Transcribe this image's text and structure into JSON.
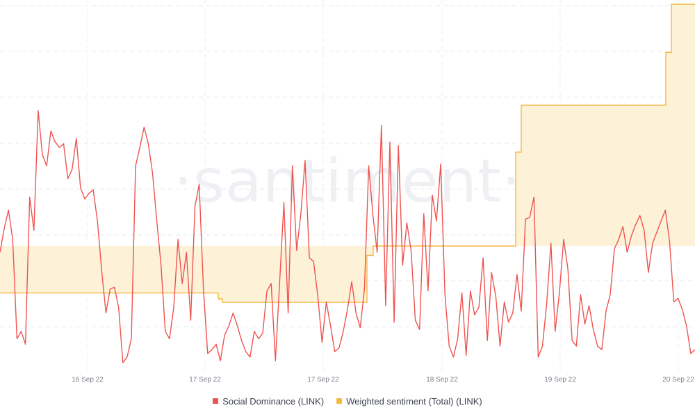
{
  "watermark": "·santiment·",
  "chart_data": {
    "type": "line",
    "title": "",
    "xlabel": "",
    "ylabel": "",
    "grid": true,
    "legend_position": "bottom-center",
    "x_ticks": [
      "16 Sep 22",
      "17 Sep 22",
      "17 Sep 22",
      "18 Sep 22",
      "19 Sep 22",
      "20 Sep 22"
    ],
    "series": [
      {
        "name": "Social Dominance (LINK)",
        "color": "#ef5350",
        "style": "line",
        "values": [
          0.65,
          0.78,
          0.88,
          0.72,
          0.18,
          0.22,
          0.15,
          0.95,
          0.77,
          1.42,
          1.18,
          1.12,
          1.31,
          1.25,
          1.22,
          1.24,
          1.05,
          1.1,
          1.27,
          1.0,
          0.94,
          0.97,
          0.99,
          0.82,
          0.55,
          0.32,
          0.45,
          0.46,
          0.35,
          0.05,
          0.08,
          0.18,
          1.12,
          1.22,
          1.33,
          1.24,
          1.08,
          0.82,
          0.58,
          0.22,
          0.18,
          0.35,
          0.72,
          0.48,
          0.65,
          0.28,
          0.9,
          1.02,
          0.45,
          0.1,
          0.12,
          0.15,
          0.06,
          0.2,
          0.25,
          0.32,
          0.25,
          0.17,
          0.11,
          0.08,
          0.22,
          0.18,
          0.21,
          0.44,
          0.48,
          0.06,
          0.49,
          0.92,
          0.32,
          1.12,
          0.66,
          0.86,
          1.15,
          0.62,
          0.6,
          0.41,
          0.16,
          0.38,
          0.25,
          0.11,
          0.13,
          0.22,
          0.34,
          0.49,
          0.32,
          0.24,
          0.45,
          1.12,
          0.85,
          0.65,
          1.34,
          0.36,
          1.25,
          0.27,
          1.23,
          0.58,
          0.81,
          0.66,
          0.28,
          0.23,
          0.86,
          0.44,
          0.96,
          0.82,
          1.13,
          0.42,
          0.14,
          0.08,
          0.18,
          0.43,
          0.09,
          0.44,
          0.31,
          0.35,
          0.62,
          0.17,
          0.54,
          0.41,
          0.14,
          0.38,
          0.27,
          0.32,
          0.53,
          0.33,
          0.83,
          0.84,
          0.95,
          0.08,
          0.14,
          0.37,
          0.7,
          0.22,
          0.43,
          0.72,
          0.56,
          0.17,
          0.14,
          0.42,
          0.26,
          0.36,
          0.23,
          0.14,
          0.12,
          0.33,
          0.42,
          0.67,
          0.72,
          0.79,
          0.65,
          0.74,
          0.8,
          0.85,
          0.77,
          0.54,
          0.7,
          0.76,
          0.82,
          0.88,
          0.71,
          0.38,
          0.4,
          0.34,
          0.25,
          0.1,
          0.12
        ]
      },
      {
        "name": "Weighted sentiment (Total) (LINK)",
        "color": "#f5b942",
        "fill": "#fdf1d8",
        "style": "step-area",
        "steps": [
          {
            "from": 0,
            "to": 314,
            "value": -0.4
          },
          {
            "from": 314,
            "to": 320,
            "value": -0.45
          },
          {
            "from": 320,
            "to": 528,
            "value": -0.48
          },
          {
            "from": 528,
            "to": 537,
            "value": -0.08
          },
          {
            "from": 537,
            "to": 742,
            "value": 0.0
          },
          {
            "from": 742,
            "to": 750,
            "value": 0.8
          },
          {
            "from": 750,
            "to": 958,
            "value": 1.2
          },
          {
            "from": 958,
            "to": 966,
            "value": 1.65
          },
          {
            "from": 966,
            "to": 1000,
            "value": 2.06
          }
        ],
        "baseline_value": 0.0
      }
    ]
  },
  "legend": {
    "items": [
      {
        "label": "Social Dominance (LINK)",
        "color": "#ef5350"
      },
      {
        "label": "Weighted sentiment (Total) (LINK)",
        "color": "#f5b942"
      }
    ]
  }
}
